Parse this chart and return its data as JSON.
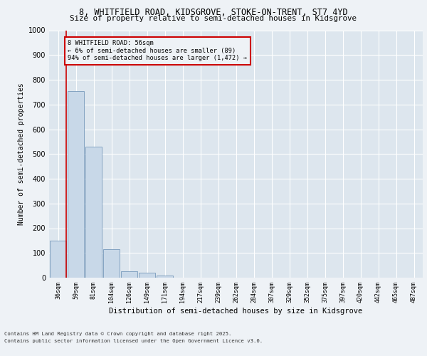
{
  "title_line1": "8, WHITFIELD ROAD, KIDSGROVE, STOKE-ON-TRENT, ST7 4YD",
  "title_line2": "Size of property relative to semi-detached houses in Kidsgrove",
  "xlabel": "Distribution of semi-detached houses by size in Kidsgrove",
  "ylabel": "Number of semi-detached properties",
  "categories": [
    "36sqm",
    "59sqm",
    "81sqm",
    "104sqm",
    "126sqm",
    "149sqm",
    "171sqm",
    "194sqm",
    "217sqm",
    "239sqm",
    "262sqm",
    "284sqm",
    "307sqm",
    "329sqm",
    "352sqm",
    "375sqm",
    "397sqm",
    "420sqm",
    "442sqm",
    "465sqm",
    "487sqm"
  ],
  "values": [
    150,
    755,
    530,
    115,
    25,
    20,
    10,
    0,
    0,
    0,
    0,
    0,
    0,
    0,
    0,
    0,
    0,
    0,
    0,
    0,
    0
  ],
  "bar_color": "#c8d8e8",
  "bar_edge_color": "#7799bb",
  "highlight_color": "#cc0000",
  "annotation_title": "8 WHITFIELD ROAD: 56sqm",
  "annotation_line2": "← 6% of semi-detached houses are smaller (89)",
  "annotation_line3": "94% of semi-detached houses are larger (1,472) →",
  "annotation_box_color": "#cc0000",
  "ylim": [
    0,
    1000
  ],
  "yticks": [
    0,
    100,
    200,
    300,
    400,
    500,
    600,
    700,
    800,
    900,
    1000
  ],
  "footer_line1": "Contains HM Land Registry data © Crown copyright and database right 2025.",
  "footer_line2": "Contains public sector information licensed under the Open Government Licence v3.0.",
  "bg_color": "#eef2f6",
  "plot_bg_color": "#dde6ee",
  "grid_color": "#ffffff"
}
